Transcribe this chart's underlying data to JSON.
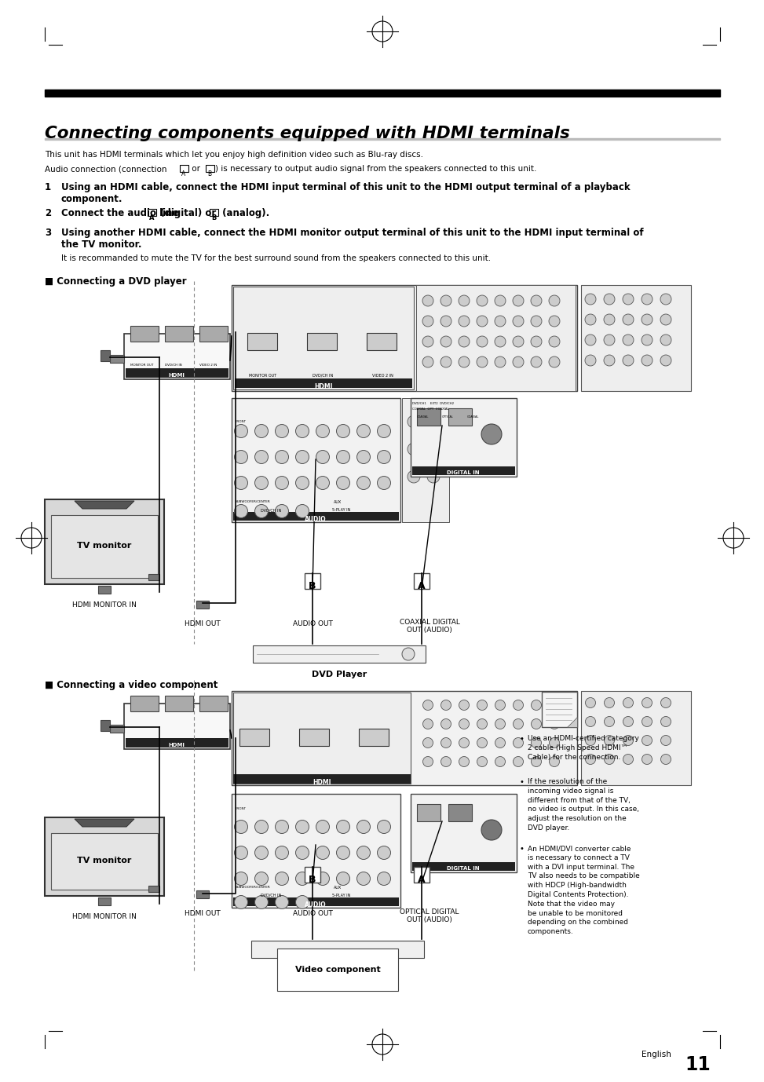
{
  "bg_color": "#ffffff",
  "title": "Connecting components equipped with HDMI terminals",
  "subtitle1": "This unit has HDMI terminals which let you enjoy high definition video such as Blu-ray discs.",
  "step1_bold": "Using an HDMI cable, connect the HDMI input terminal of this unit to the HDMI output terminal of a playback\ncomponent.",
  "step3_bold": "Using another HDMI cable, connect the HDMI monitor output terminal of this unit to the HDMI input terminal of\nthe TV monitor.",
  "step3_note": "It is recommanded to mute the TV for the best surround sound from the speakers connected to this unit.",
  "section1_title": "■ Connecting a DVD player",
  "section2_title": "■ Connecting a video component",
  "note_bullet1": "Use an HDMI-certified category\n2 cable (High Speed HDMI™\nCable) for the connection.",
  "note_bullet2": "If the resolution of the\nincoming video signal is\ndifferent from that of the TV,\nno video is output. In this case,\nadjust the resolution on the\nDVD player.",
  "note_bullet3": "An HDMI/DVI converter cable\nis necessary to connect a TV\nwith a DVI input terminal. The\nTV also needs to be compatible\nwith HDCP (High-bandwidth\nDigital Contents Protection).\nNote that the video may\nbe unable to be monitored\ndepending on the combined\ncomponents.",
  "footer": "English",
  "page_num": "11"
}
